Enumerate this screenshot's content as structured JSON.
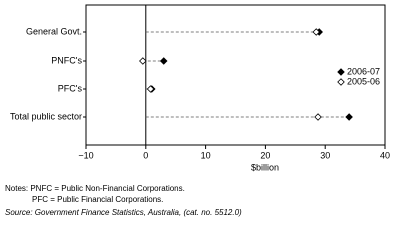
{
  "chart_data": {
    "type": "dot",
    "categories": [
      "General Govt.",
      "PNFC's",
      "PFC's",
      "Total public sector"
    ],
    "series": [
      {
        "name": "2006-07",
        "color": "#000000",
        "values": [
          29,
          3,
          1,
          34
        ]
      },
      {
        "name": "2005-06",
        "color": "#ffffff",
        "values": [
          28.5,
          -0.5,
          0.8,
          28.8
        ]
      }
    ],
    "xlim": [
      -10,
      40
    ],
    "xticks": [
      {
        "value": -10,
        "label": "−10"
      },
      0,
      10,
      20,
      30,
      40
    ],
    "x_label": "$billion",
    "notes": [
      "Notes: PNFC = Public Non-Financial Corporations.",
      "PFC = Public Financial Corporations."
    ],
    "source": "Source: Government Finance Statistics, Australia, (cat. no. 5512.0)"
  }
}
